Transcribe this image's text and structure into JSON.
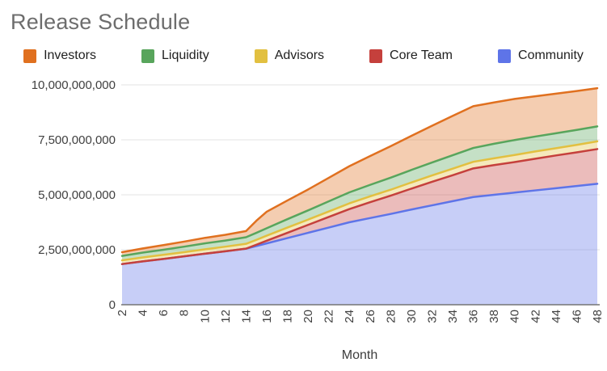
{
  "styles": {
    "background": "#ffffff",
    "title_color": "#6d6d6d",
    "legend_text_color": "#1f1f1f",
    "tick_color": "#404040",
    "gridline_color": "#e3e3e3",
    "axis_line_color": "#757575",
    "fill_opacity": 0.35
  },
  "chart_data": {
    "type": "area",
    "stacked": true,
    "title": "Release Schedule",
    "xlabel": "Month",
    "ylabel": "",
    "legend_position": "top",
    "grid": "horizontal",
    "xlim": [
      2,
      48
    ],
    "ylim": [
      0,
      10000000000
    ],
    "x_ticks": [
      2,
      4,
      6,
      8,
      10,
      12,
      14,
      16,
      18,
      20,
      22,
      24,
      26,
      28,
      30,
      32,
      34,
      36,
      38,
      40,
      42,
      44,
      46,
      48
    ],
    "x_tick_labels": [
      "2",
      "4",
      "6",
      "8",
      "10",
      "12",
      "14",
      "16",
      "18",
      "20",
      "22",
      "24",
      "26",
      "28",
      "30",
      "32",
      "34",
      "36",
      "38",
      "40",
      "42",
      "44",
      "46",
      "48"
    ],
    "y_ticks": [
      0,
      2500000000,
      5000000000,
      7500000000,
      10000000000
    ],
    "y_tick_labels": [
      "0",
      "2,500,000,000",
      "5,000,000,000",
      "7,500,000,000",
      "10,000,000,000"
    ],
    "x": [
      2,
      4,
      6,
      8,
      10,
      12,
      14,
      15,
      16,
      18,
      20,
      22,
      24,
      26,
      28,
      30,
      32,
      34,
      36,
      38,
      40,
      42,
      44,
      46,
      48
    ],
    "stack_order_bottom_to_top": [
      "Community",
      "Core Team",
      "Advisors",
      "Liquidity",
      "Investors"
    ],
    "series": [
      {
        "name": "Investors",
        "color": "#E0701F",
        "values": [
          170000000.0,
          190000000.0,
          210000000.0,
          230000000.0,
          250000000.0,
          260000000.0,
          280000000.0,
          550000000.0,
          750000000.0,
          850000000.0,
          950000000.0,
          1070000000.0,
          1190000000.0,
          1310000000.0,
          1430000000.0,
          1550000000.0,
          1670000000.0,
          1790000000.0,
          1900000000.0,
          1880000000.0,
          1870000000.0,
          1830000000.0,
          1800000000.0,
          1770000000.0,
          1740000000.0
        ]
      },
      {
        "name": "Liquidity",
        "color": "#58A55C",
        "values": [
          200000000.0,
          220000000.0,
          230000000.0,
          250000000.0,
          270000000.0,
          280000000.0,
          300000000.0,
          320000000.0,
          340000000.0,
          380000000.0,
          420000000.0,
          460000000.0,
          500000000.0,
          520000000.0,
          550000000.0,
          570000000.0,
          590000000.0,
          610000000.0,
          630000000.0,
          660000000.0,
          680000000.0,
          680000000.0,
          680000000.0,
          680000000.0,
          680000000.0
        ]
      },
      {
        "name": "Advisors",
        "color": "#E2C040",
        "values": [
          170000000.0,
          180000000.0,
          190000000.0,
          190000000.0,
          200000000.0,
          210000000.0,
          220000000.0,
          220000000.0,
          230000000.0,
          240000000.0,
          240000000.0,
          250000000.0,
          260000000.0,
          270000000.0,
          270000000.0,
          280000000.0,
          290000000.0,
          300000000.0,
          300000000.0,
          310000000.0,
          320000000.0,
          330000000.0,
          330000000.0,
          340000000.0,
          350000000.0
        ]
      },
      {
        "name": "Core Team",
        "color": "#C5403C",
        "values": [
          0,
          0,
          0,
          0,
          0,
          0,
          0,
          60000000.0,
          120000000.0,
          240000000.0,
          360000000.0,
          480000000.0,
          600000000.0,
          720000000.0,
          830000000.0,
          950000000.0,
          1070000000.0,
          1180000000.0,
          1300000000.0,
          1350000000.0,
          1390000000.0,
          1440000000.0,
          1490000000.0,
          1530000000.0,
          1580000000.0
        ]
      },
      {
        "name": "Community",
        "color": "#5E74E8",
        "values": [
          1850000000.0,
          1970000000.0,
          2080000000.0,
          2200000000.0,
          2320000000.0,
          2430000000.0,
          2550000000.0,
          2670000000.0,
          2790000000.0,
          3030000000.0,
          3270000000.0,
          3510000000.0,
          3750000000.0,
          3940000000.0,
          4130000000.0,
          4330000000.0,
          4520000000.0,
          4710000000.0,
          4900000000.0,
          5000000000.0,
          5100000000.0,
          5200000000.0,
          5300000000.0,
          5400000000.0,
          5500000000.0
        ]
      }
    ]
  }
}
